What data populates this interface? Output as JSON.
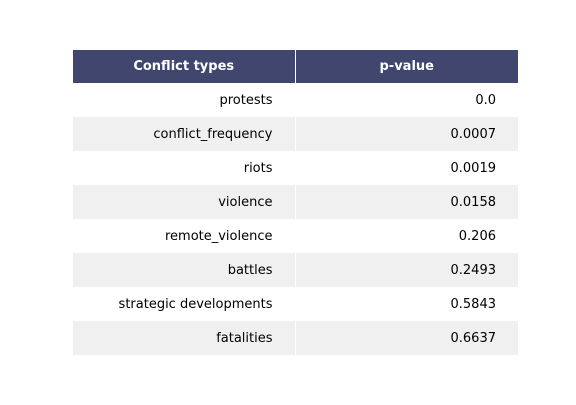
{
  "chart_data": {
    "type": "table",
    "columns": [
      "Conflict types",
      "p-value"
    ],
    "rows": [
      [
        "protests",
        "0.0"
      ],
      [
        "conflict_frequency",
        "0.0007"
      ],
      [
        "riots",
        "0.0019"
      ],
      [
        "violence",
        "0.0158"
      ],
      [
        "remote_violence",
        "0.206"
      ],
      [
        "battles",
        "0.2493"
      ],
      [
        "strategic developments",
        "0.5843"
      ],
      [
        "fatalities",
        "0.6637"
      ]
    ]
  },
  "colors": {
    "header_bg": "#40466e",
    "header_text": "#ffffff",
    "row_alt_bg": "#f0f0f0",
    "row_bg": "#ffffff"
  }
}
